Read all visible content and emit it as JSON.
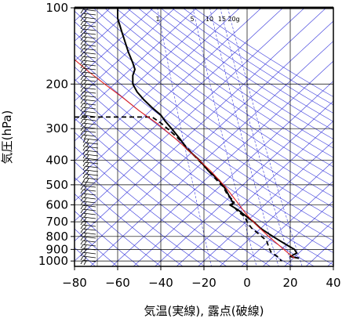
{
  "chart_data": {
    "type": "line",
    "chart_kind": "skew-T log-p sounding (emagram)",
    "xlabel": "気温(実線), 露点(破線)",
    "ylabel": "気圧(hPa)",
    "x_ticks": [
      -80,
      -60,
      -40,
      -20,
      0,
      20,
      40
    ],
    "y_ticks": [
      100,
      200,
      300,
      400,
      500,
      600,
      700,
      800,
      900,
      1000
    ],
    "xlim": [
      -80,
      40
    ],
    "ylim": [
      1050,
      100
    ],
    "y_scale": "log",
    "grid": true,
    "mixing_ratio_labels": [
      "1",
      "5",
      "10",
      "15",
      "20g"
    ],
    "mixing_ratio_values": [
      1,
      5,
      10,
      15,
      20
    ],
    "colors": {
      "isopleth": "#3b3bdc",
      "reference_profile": "#e02020",
      "temperature": "#000000",
      "dewpoint": "#000000",
      "grid": "#000000"
    },
    "series": [
      {
        "style": "solid",
        "points": [
          [
            -60,
            100
          ],
          [
            -60,
            110
          ],
          [
            -58,
            125
          ],
          [
            -55,
            150
          ],
          [
            -53,
            165
          ],
          [
            -52,
            175
          ],
          [
            -53,
            185
          ],
          [
            -53,
            200
          ],
          [
            -51,
            215
          ],
          [
            -48,
            230
          ],
          [
            -44,
            248
          ],
          [
            -40,
            265
          ],
          [
            -38,
            280
          ],
          [
            -35,
            300
          ],
          [
            -31,
            330
          ],
          [
            -28,
            360
          ],
          [
            -22,
            400
          ],
          [
            -18,
            440
          ],
          [
            -13,
            480
          ],
          [
            -10,
            520
          ],
          [
            -8,
            560
          ],
          [
            -7,
            580
          ],
          [
            -6,
            590
          ],
          [
            -8,
            600
          ],
          [
            -4,
            630
          ],
          [
            0,
            670
          ],
          [
            3,
            700
          ],
          [
            6,
            740
          ],
          [
            10,
            780
          ],
          [
            14,
            820
          ],
          [
            18,
            860
          ],
          [
            22,
            900
          ],
          [
            23,
            930
          ],
          [
            20,
            960
          ],
          [
            24,
            975
          ]
        ]
      },
      {
        "style": "dashed",
        "points": [
          [
            -80,
            270
          ],
          [
            -44,
            270
          ],
          [
            -40,
            285
          ],
          [
            -35,
            310
          ],
          [
            -30,
            340
          ],
          [
            -25,
            380
          ],
          [
            -19,
            430
          ],
          [
            -15,
            470
          ],
          [
            -11,
            510
          ],
          [
            -9,
            550
          ],
          [
            -6,
            580
          ],
          [
            -7,
            600
          ],
          [
            -4,
            640
          ],
          [
            -1,
            670
          ],
          [
            0,
            700
          ],
          [
            2,
            740
          ],
          [
            6,
            790
          ],
          [
            9,
            830
          ],
          [
            10,
            880
          ],
          [
            11,
            920
          ],
          [
            14,
            960
          ],
          [
            16,
            1000
          ]
        ]
      },
      {
        "style": "solid-red",
        "points": [
          [
            -80,
            160
          ],
          [
            -73,
            180
          ],
          [
            -66,
            200
          ],
          [
            -58,
            225
          ],
          [
            -50,
            255
          ],
          [
            -42,
            285
          ],
          [
            -33,
            330
          ],
          [
            -25,
            380
          ],
          [
            -17,
            440
          ],
          [
            -10,
            510
          ],
          [
            -5,
            580
          ],
          [
            0,
            660
          ],
          [
            5,
            730
          ],
          [
            10,
            800
          ],
          [
            15,
            870
          ],
          [
            19,
            930
          ],
          [
            22,
            975
          ]
        ]
      }
    ],
    "wind_barbs_present": true
  }
}
